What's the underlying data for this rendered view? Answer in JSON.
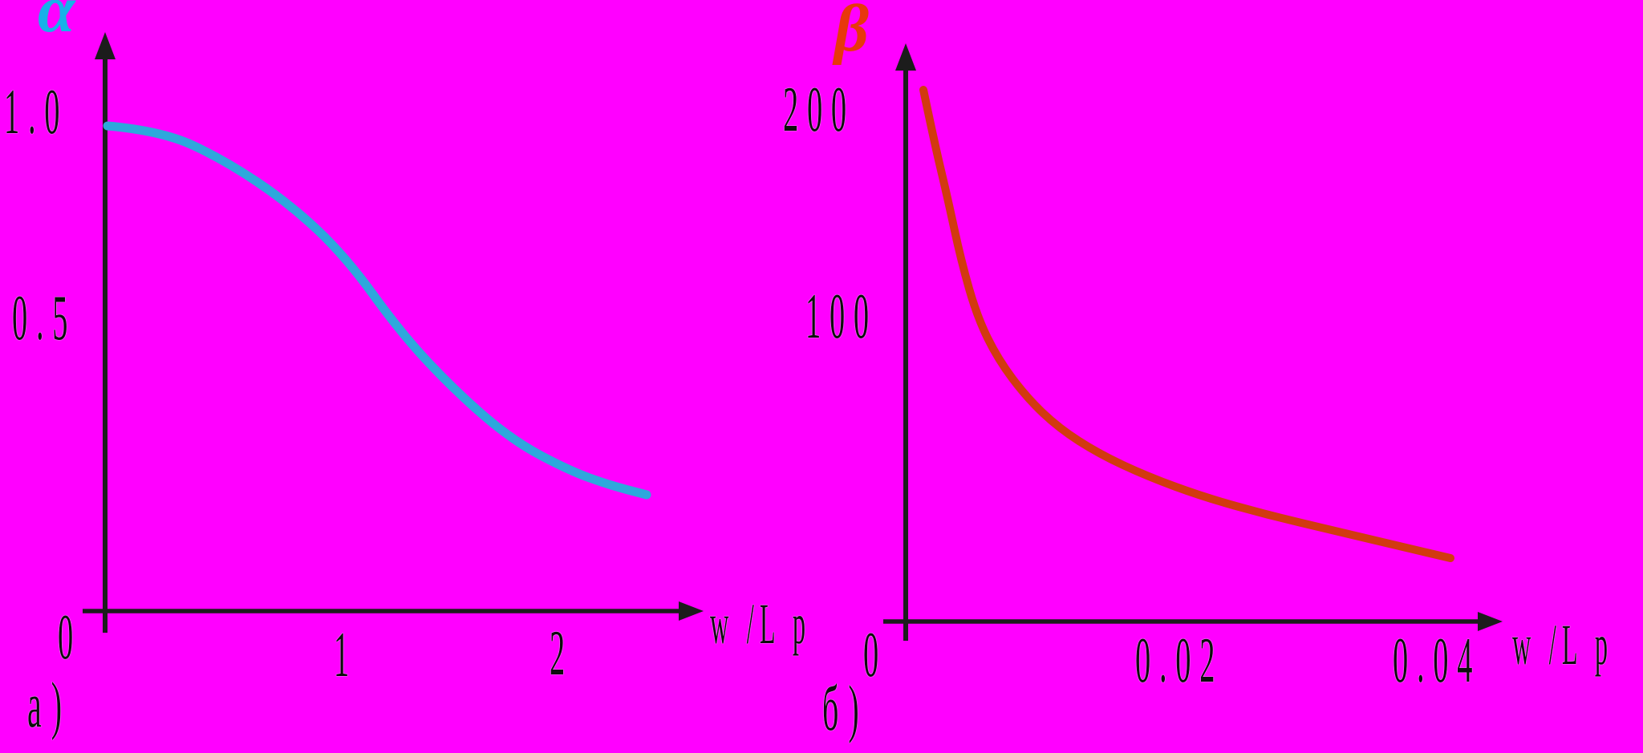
{
  "page": {
    "background": "#FF00FF"
  },
  "chart_data": [
    {
      "type": "line",
      "id": "alpha",
      "title": "",
      "ylabel": "α",
      "xlabel": "w /L p",
      "panel_label": "a)",
      "x_tick_labels": [
        "0",
        "1",
        "2"
      ],
      "y_tick_labels": [
        "1.0",
        "0.5"
      ],
      "x": [
        0.01,
        0.24,
        0.51,
        0.79,
        1.03,
        1.27,
        1.51,
        1.75,
        1.99,
        2.16,
        2.32
      ],
      "y": [
        1.0,
        0.99,
        0.93,
        0.84,
        0.73,
        0.57,
        0.45,
        0.35,
        0.29,
        0.26,
        0.24
      ],
      "xlim": [
        0,
        2.55
      ],
      "ylim": [
        0,
        1.05
      ],
      "grid": false,
      "legend": false,
      "line_color": "#2EA7DC",
      "label_color": "#17B1E8",
      "axis_color": "#1C1C1C"
    },
    {
      "type": "line",
      "id": "beta",
      "title": "",
      "ylabel": "β",
      "xlabel": "w /L p",
      "panel_label": "б)",
      "x_tick_labels": [
        "0",
        "0.02",
        "0.04"
      ],
      "y_tick_labels": [
        "200",
        "100"
      ],
      "x": [
        0.0013,
        0.0021,
        0.003,
        0.004,
        0.0052,
        0.0067,
        0.0088,
        0.0111,
        0.014,
        0.0175,
        0.0216,
        0.0262,
        0.0309,
        0.0355,
        0.0395
      ],
      "y": [
        209,
        188,
        167,
        142,
        120,
        103,
        88,
        76,
        66,
        57,
        49,
        42,
        36,
        30,
        25
      ],
      "xlim": [
        0,
        0.043
      ],
      "ylim": [
        0,
        215
      ],
      "grid": false,
      "legend": false,
      "line_color": "#D23A10",
      "label_color": "#E8380C",
      "axis_color": "#1C1C1C"
    }
  ]
}
